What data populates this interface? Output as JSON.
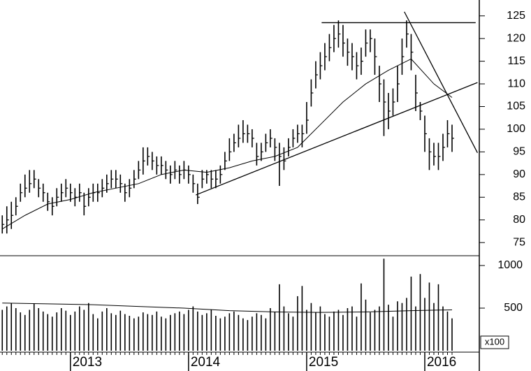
{
  "chart_data": {
    "type": "ohlc",
    "categories": [
      null,
      null,
      null,
      null,
      null,
      null,
      null,
      null,
      null,
      null,
      null,
      null,
      null,
      null,
      null,
      "2013",
      null,
      null,
      null,
      null,
      null,
      null,
      null,
      null,
      null,
      null,
      null,
      null,
      null,
      null,
      null,
      null,
      null,
      null,
      null,
      null,
      null,
      null,
      null,
      null,
      null,
      "2014",
      null,
      null,
      null,
      null,
      null,
      null,
      null,
      null,
      null,
      null,
      null,
      null,
      null,
      null,
      null,
      null,
      null,
      null,
      null,
      null,
      null,
      null,
      null,
      null,
      null,
      "2015",
      null,
      null,
      null,
      null,
      null,
      null,
      null,
      null,
      null,
      null,
      null,
      null,
      null,
      null,
      null,
      null,
      null,
      null,
      null,
      null,
      null,
      null,
      null,
      null,
      null,
      "2016",
      null,
      null,
      null,
      null,
      null,
      null
    ],
    "high": [
      81,
      83,
      84,
      85,
      88,
      90,
      91,
      91,
      89,
      88,
      86,
      85,
      87,
      88,
      89,
      88,
      87,
      88,
      86,
      87,
      88,
      88,
      89,
      90,
      91,
      91,
      90,
      88,
      89,
      91,
      93,
      96,
      96,
      95,
      94,
      94,
      93,
      92,
      93,
      92,
      93,
      92,
      90,
      88,
      91,
      91,
      91,
      91,
      92,
      95,
      98,
      99,
      101,
      102,
      101,
      100,
      97,
      97,
      99,
      100,
      98,
      97,
      96,
      98,
      100,
      101,
      101,
      106,
      111,
      115,
      117,
      119,
      121,
      123,
      124,
      123,
      120,
      119,
      117,
      118,
      122,
      122,
      120,
      114,
      111,
      108,
      109,
      114,
      120,
      124,
      121,
      112,
      106,
      103,
      98,
      97,
      97,
      99,
      102,
      101
    ],
    "low": [
      77,
      77,
      78,
      81,
      84,
      85,
      86,
      87,
      85,
      84,
      82,
      81,
      83,
      84,
      85,
      84,
      83,
      84,
      81,
      83,
      84,
      84,
      85,
      86,
      87,
      87,
      86,
      84,
      85,
      87,
      89,
      90,
      92,
      91,
      90,
      90,
      89,
      88,
      89,
      88,
      89,
      88,
      86,
      83.5,
      87,
      88,
      87,
      87,
      88,
      91,
      93,
      95,
      96,
      97,
      97,
      96,
      92,
      93,
      95,
      96,
      93,
      87.5,
      91,
      94,
      96,
      97,
      96,
      99,
      105,
      109,
      111,
      113,
      115,
      117,
      118,
      116,
      114,
      113,
      111,
      112,
      116,
      117,
      112,
      106,
      98.5,
      100,
      103,
      106,
      112,
      118,
      113,
      104,
      102,
      95,
      91,
      92,
      91,
      93,
      96,
      95
    ],
    "close": [
      79,
      80,
      81,
      83,
      86,
      87,
      88,
      89,
      87,
      86,
      84,
      83,
      85,
      86,
      87,
      86,
      85,
      86,
      83,
      85,
      86,
      86,
      87,
      88,
      89,
      89,
      88,
      86,
      87,
      89,
      91,
      93,
      94,
      93,
      92,
      92,
      91,
      90,
      91,
      90,
      91,
      90,
      88,
      85,
      89,
      90,
      89,
      89,
      90,
      93,
      95,
      97,
      98,
      99,
      99,
      98,
      94,
      95,
      97,
      98,
      96,
      94,
      93,
      96,
      98,
      99,
      99,
      102,
      108,
      112,
      114,
      116,
      118,
      120,
      121,
      119,
      117,
      116,
      114,
      115,
      119,
      120,
      116,
      110,
      106,
      104,
      106,
      110,
      116,
      121,
      117,
      108,
      104,
      99,
      95,
      94,
      94,
      96,
      99,
      98
    ],
    "volume": [
      480,
      520,
      560,
      500,
      450,
      420,
      480,
      550,
      500,
      460,
      430,
      400,
      450,
      500,
      470,
      420,
      460,
      520,
      480,
      560,
      430,
      380,
      460,
      500,
      440,
      420,
      470,
      430,
      410,
      380,
      400,
      450,
      430,
      420,
      460,
      400,
      380,
      420,
      440,
      460,
      430,
      480,
      520,
      460,
      420,
      440,
      480,
      410,
      380,
      400,
      440,
      460,
      420,
      380,
      360,
      400,
      440,
      420,
      380,
      500,
      460,
      780,
      520,
      440,
      400,
      640,
      760,
      480,
      560,
      450,
      520,
      430,
      400,
      460,
      480,
      420,
      500,
      520,
      400,
      790,
      600,
      450,
      480,
      520,
      1080,
      540,
      400,
      580,
      560,
      620,
      870,
      520,
      900,
      620,
      800,
      560,
      780,
      520,
      460,
      380
    ],
    "moving_average": {
      "x": [
        0,
        5,
        10,
        15,
        20,
        25,
        30,
        35,
        40,
        45,
        50,
        55,
        60,
        65,
        70,
        75,
        80,
        85,
        90,
        95,
        99
      ],
      "values": [
        78,
        81,
        83.5,
        84.5,
        86,
        87,
        88,
        90,
        91,
        90.5,
        91.5,
        93,
        94,
        96,
        101,
        106,
        110,
        113,
        115.5,
        110,
        107
      ]
    },
    "volume_average": {
      "x": [
        0,
        10,
        20,
        30,
        40,
        50,
        60,
        70,
        80,
        90,
        99
      ],
      "values": [
        560,
        550,
        540,
        520,
        500,
        470,
        455,
        450,
        455,
        470,
        480
      ]
    },
    "trendlines": [
      {
        "x": [
          42.6,
          104.6
        ],
        "y": [
          85.5,
          110.3
        ]
      },
      {
        "x": [
          70.3,
          104.2
        ],
        "y": [
          123.5,
          123.5
        ]
      },
      {
        "x": [
          88.5,
          104.6
        ],
        "y": [
          125.9,
          94.8
        ]
      }
    ],
    "xlim": [
      -0.5,
      105
    ],
    "ylim": [
      72.1,
      128.5
    ],
    "yticks": [
      75,
      80,
      85,
      90,
      95,
      100,
      105,
      110,
      115,
      120,
      125
    ],
    "volume_ylim": [
      0,
      1115
    ],
    "volume_yticks": [
      500,
      1000
    ],
    "volume_unit": "x100",
    "color": "#000000"
  }
}
